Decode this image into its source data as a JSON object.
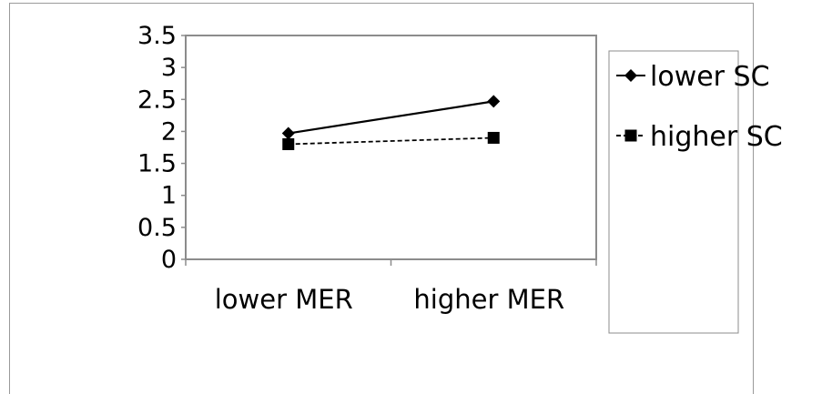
{
  "chart_data": {
    "type": "line",
    "categories": [
      "lower MER",
      "higher MER"
    ],
    "series": [
      {
        "name": "lower SC",
        "values": [
          1.97,
          2.47
        ],
        "marker": "diamond",
        "line": "solid",
        "color": "#000000"
      },
      {
        "name": "higher SC",
        "values": [
          1.8,
          1.9
        ],
        "marker": "square",
        "line": "dashed",
        "color": "#000000"
      }
    ],
    "ylim": [
      0,
      3.5
    ],
    "yticks": [
      "0",
      "0.5",
      "1",
      "1.5",
      "2",
      "2.5",
      "3",
      "3.5"
    ],
    "grid": false,
    "legend_position": "right"
  }
}
